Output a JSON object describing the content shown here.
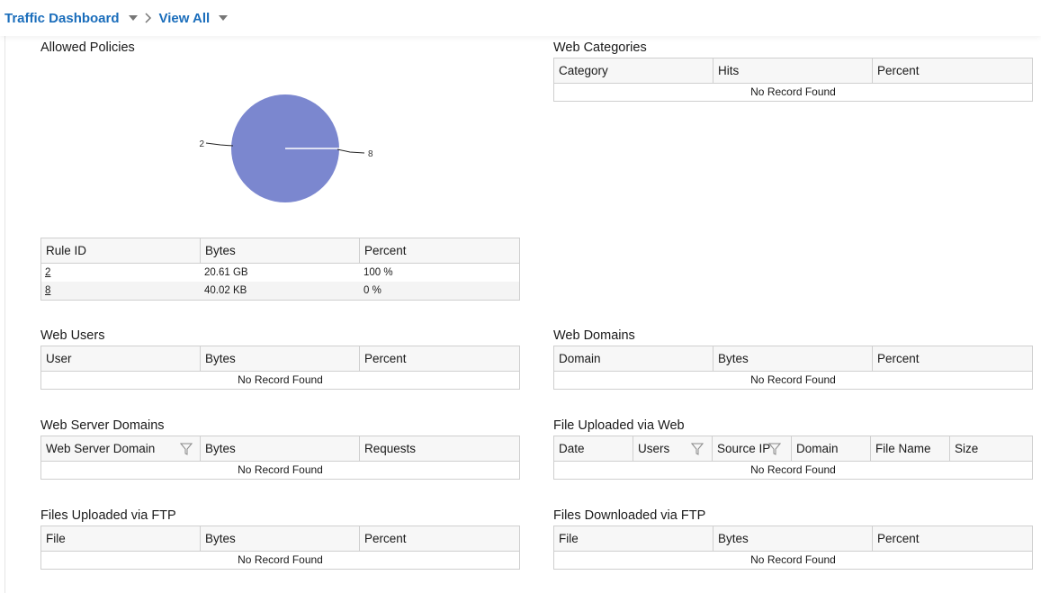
{
  "breadcrumb": {
    "dashboard": "Traffic Dashboard",
    "view": "View All"
  },
  "allowed_policies": {
    "title": "Allowed Policies",
    "chart_data": {
      "type": "pie",
      "title": "",
      "slices": [
        {
          "label": "2",
          "value": 100
        },
        {
          "label": "8",
          "value": 0
        }
      ],
      "color": "#7b87cf"
    },
    "columns": [
      "Rule ID",
      "Bytes",
      "Percent"
    ],
    "rows": [
      {
        "rule": "2",
        "bytes": "20.61 GB",
        "percent": "100 %"
      },
      {
        "rule": "8",
        "bytes": "40.02 KB",
        "percent": "0 %"
      }
    ]
  },
  "web_categories": {
    "title": "Web Categories",
    "columns": [
      "Category",
      "Hits",
      "Percent"
    ],
    "empty": "No Record Found"
  },
  "web_users": {
    "title": "Web Users",
    "columns": [
      "User",
      "Bytes",
      "Percent"
    ],
    "empty": "No Record Found"
  },
  "web_domains": {
    "title": "Web Domains",
    "columns": [
      "Domain",
      "Bytes",
      "Percent"
    ],
    "empty": "No Record Found"
  },
  "web_server_domains": {
    "title": "Web Server Domains",
    "columns": [
      "Web Server Domain",
      "Bytes",
      "Requests"
    ],
    "empty": "No Record Found"
  },
  "file_uploaded_web": {
    "title": "File Uploaded via Web",
    "columns": [
      "Date",
      "Users",
      "Source IP",
      "Domain",
      "File Name",
      "Size"
    ],
    "empty": "No Record Found"
  },
  "files_uploaded_ftp": {
    "title": "Files Uploaded via FTP",
    "columns": [
      "File",
      "Bytes",
      "Percent"
    ],
    "empty": "No Record Found"
  },
  "files_downloaded_ftp": {
    "title": "Files Downloaded via FTP",
    "columns": [
      "File",
      "Bytes",
      "Percent"
    ],
    "empty": "No Record Found"
  },
  "icons": {
    "dropdown": "chevron-down-icon",
    "separator": "chevron-right-icon",
    "filter": "filter-icon"
  }
}
